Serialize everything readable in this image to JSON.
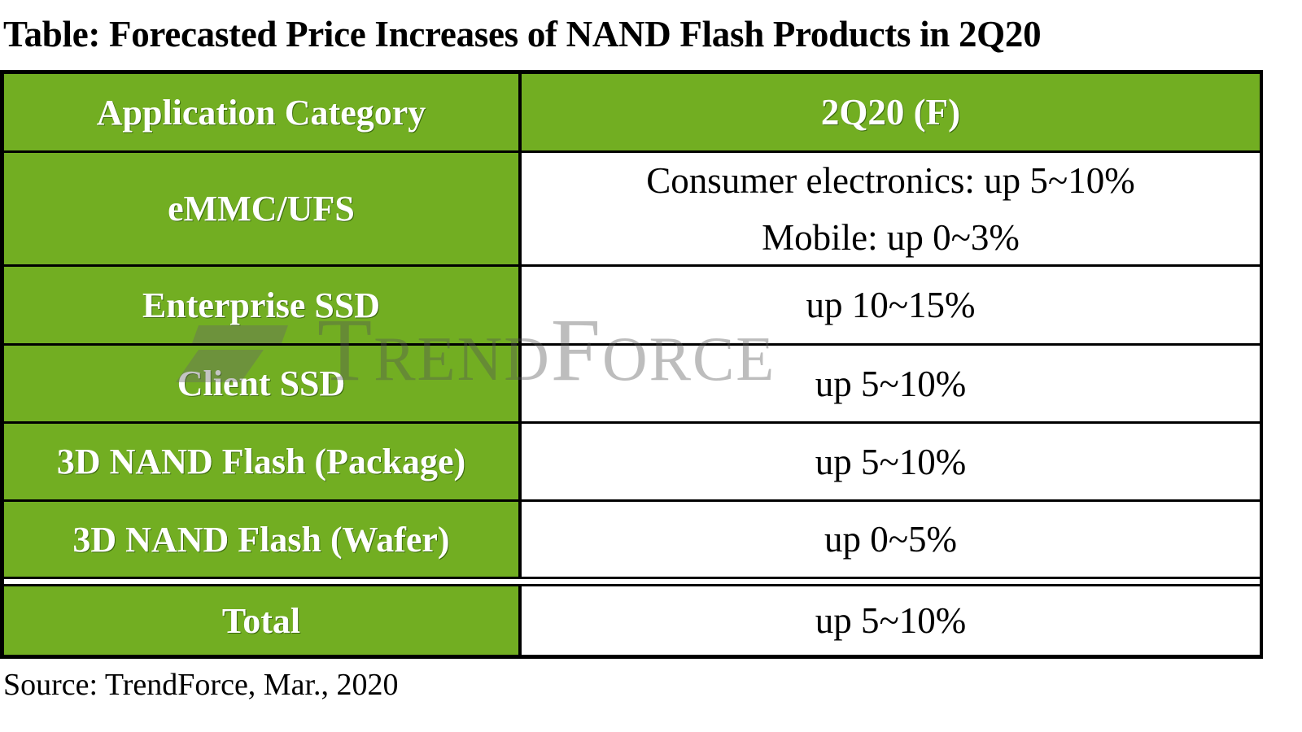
{
  "title": "Table: Forecasted Price Increases of NAND Flash Products in 2Q20",
  "table": {
    "headers": [
      "Application Category",
      "2Q20 (F)"
    ],
    "rows": [
      {
        "category": "eMMC/UFS",
        "values": [
          "Consumer electronics: up 5~10%",
          "Mobile: up 0~3%"
        ]
      },
      {
        "category": "Enterprise SSD",
        "values": [
          "up 10~15%"
        ]
      },
      {
        "category": "Client SSD",
        "values": [
          "up 5~10%"
        ]
      },
      {
        "category": "3D NAND Flash (Package)",
        "values": [
          "up 5~10%"
        ]
      },
      {
        "category": "3D NAND Flash (Wafer)",
        "values": [
          "up 0~5%"
        ]
      }
    ],
    "total": {
      "category": "Total",
      "value": "up 5~10%"
    }
  },
  "watermark": "TrendForce",
  "source": "Source: TrendForce, Mar., 2020",
  "colors": {
    "header_green": "#72ae22",
    "border": "#000000"
  }
}
